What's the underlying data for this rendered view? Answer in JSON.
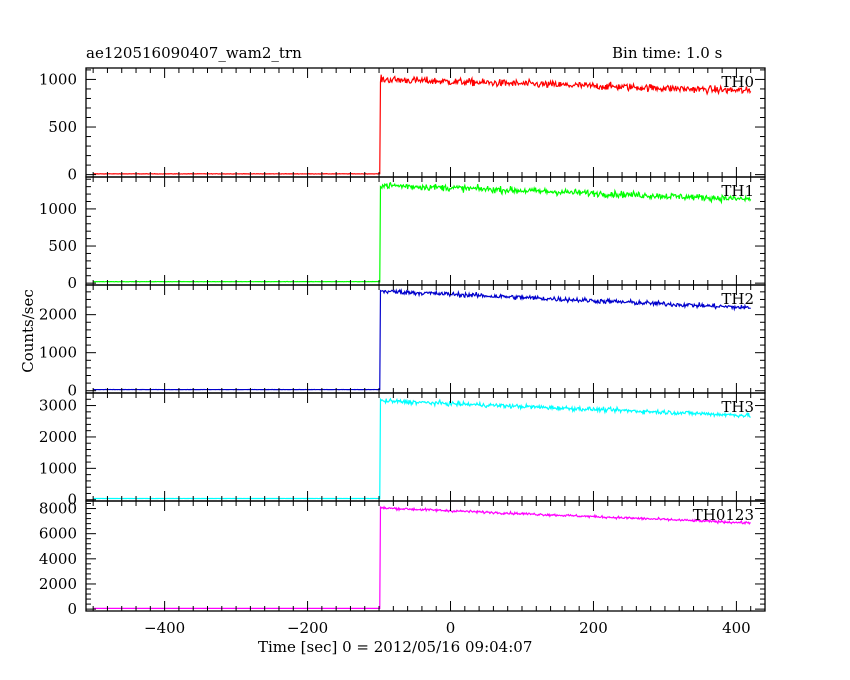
{
  "header": {
    "title": "ae120516090407_wam2_trn",
    "bin_time": "Bin time: 1.0 s"
  },
  "chart_data": {
    "type": "line",
    "xlabel": "Time [sec] 0 = 2012/05/16 09:04:07",
    "ylabel": "Counts/sec",
    "xlim": [
      -510,
      440
    ],
    "x_ticks": [
      -400,
      -200,
      0,
      200,
      400
    ],
    "x_tick_labels": [
      "−400",
      "−200",
      "0",
      "200",
      "400"
    ],
    "x_range": [
      -500,
      420
    ],
    "trigger_time": -98,
    "grid": false,
    "panels": [
      {
        "name": "TH0",
        "color": "#ff0000",
        "ylim": [
          -25,
          1120
        ],
        "yticks": [
          0,
          500,
          1000
        ],
        "pre_level": 8,
        "peak": 1000,
        "end": 880,
        "noise": 28
      },
      {
        "name": "TH1",
        "color": "#00ff00",
        "ylim": [
          -25,
          1430
        ],
        "yticks": [
          0,
          500,
          1000
        ],
        "pre_level": 20,
        "peak": 1320,
        "end": 1130,
        "noise": 32
      },
      {
        "name": "TH2",
        "color": "#0000cc",
        "ylim": [
          -60,
          2780
        ],
        "yticks": [
          0,
          1000,
          2000
        ],
        "pre_level": 30,
        "peak": 2620,
        "end": 2180,
        "noise": 45
      },
      {
        "name": "TH3",
        "color": "#00ffff",
        "ylim": [
          -40,
          3400
        ],
        "yticks": [
          0,
          1000,
          2000,
          3000
        ],
        "pre_level": 40,
        "peak": 3150,
        "end": 2680,
        "noise": 50
      },
      {
        "name": "TH0123",
        "color": "#ff00ff",
        "ylim": [
          -150,
          8600
        ],
        "yticks": [
          0,
          2000,
          4000,
          6000,
          8000
        ],
        "pre_level": 60,
        "peak": 8050,
        "end": 6850,
        "noise": 70
      }
    ]
  }
}
